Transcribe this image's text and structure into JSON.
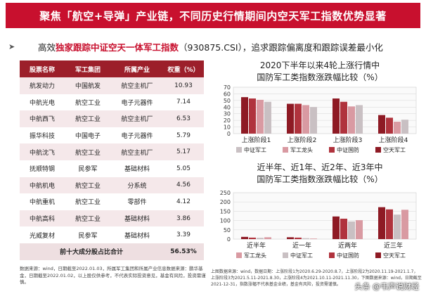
{
  "banner": {
    "title": "聚焦「航空+导弹」产业链，不同历史行情期间内空天军工指数优势显著"
  },
  "subtitle": {
    "arrow": "➤",
    "prefix": "高效",
    "highlight": "独家跟踪中证空天一体军工指数",
    "code": "（930875.CSI）",
    "suffix": "，追求跟踪偏离度和跟踪误差最小化"
  },
  "table": {
    "headers": [
      "股票名称",
      "军工集团",
      "所属产业",
      "权重（%）"
    ],
    "rows": [
      [
        "航发动力",
        "中国航发",
        "航空主机厂",
        "10.93"
      ],
      [
        "中航光电",
        "航空工业",
        "电子元器件",
        "7.14"
      ],
      [
        "中航西飞",
        "航空工业",
        "航空主机厂",
        "6.53"
      ],
      [
        "振华科技",
        "中国电子",
        "电子元器件",
        "5.79"
      ],
      [
        "中航沈飞",
        "航空工业",
        "航空主机厂",
        "5.17"
      ],
      [
        "抚顺特钢",
        "民参军",
        "基础材料",
        "5.05"
      ],
      [
        "中航机电",
        "航空工业",
        "分系统",
        "4.56"
      ],
      [
        "中航重机",
        "航空工业",
        "零部件",
        "4.12"
      ],
      [
        "中航高科",
        "航空工业",
        "基础材料",
        "3.86"
      ],
      [
        "光威复材",
        "民参军",
        "基础材料",
        "3.39"
      ]
    ],
    "total_label": "前十大成分股占比合计",
    "total_value": "56.53%"
  },
  "note_left": "数据来源：wind，日期截至2022.01.03，所属军工集团和所属产业信息数据来源：鹏华基金，日期截至2022.01.02，以上股仅供参考，不代表实际投资意见，基金有风险，投资需谨慎。",
  "note_right": "上图数据来源：wind，数据日期：上涨阶段1为2020.6.29-2020.8.7，上涨阶段2为2020.11.19-2021.1.7，上涨阶段3为2021.5.11-2021.8.30，上涨阶段4为2021.10.11-2021.11.30，下图数据来源：wind，日期截至2021-12-31，指数涨幅不代表基金业绩，基金有风险，投资需谨慎。",
  "watermark": "头条 @韦声说财经",
  "chart1": {
    "title_line1": "2020下半年以来4轮上涨行情中",
    "title_line2": "国防军工类指数涨跌幅比较（%）"
  },
  "chart2": {
    "title_line1": "近半年、近1年、近2年、近3年中",
    "title_line2": "国防军工类指数涨跌幅比较（%）"
  },
  "colors": {
    "banner": "#c8102e",
    "header": "#9c1f2a",
    "s1": "#8e1a24",
    "s2": "#b0333d",
    "s3": "#d99aa2",
    "s4": "#c9c0c3"
  },
  "chart_data": [
    {
      "type": "bar",
      "categories": [
        "上涨阶段1",
        "上涨阶段2",
        "上涨阶段3",
        "上涨阶段4"
      ],
      "series": [
        {
          "name": "空天军工",
          "values": [
            55,
            45,
            53,
            28
          ]
        },
        {
          "name": "中证国防",
          "values": [
            53,
            45,
            48,
            24
          ]
        },
        {
          "name": "军工龙头",
          "values": [
            51,
            43,
            41,
            18
          ]
        },
        {
          "name": "中证军工",
          "values": [
            48,
            40,
            43,
            21
          ]
        }
      ],
      "xlabel": "",
      "ylabel": "",
      "ylim": [
        0,
        70
      ],
      "yticks": [
        "0",
        "10",
        "20",
        "30",
        "40",
        "50",
        "60",
        "70"
      ],
      "legend_order": [
        "中证军工",
        "军工龙头",
        "中证国防",
        "空天军工"
      ],
      "grid": true,
      "legend": "bottom"
    },
    {
      "type": "bar",
      "categories": [
        "近半年",
        "近一年",
        "近两年",
        "近三年"
      ],
      "series": [
        {
          "name": "空天军工",
          "values": [
            12,
            10,
            122,
            172
          ]
        },
        {
          "name": "中证国防",
          "values": [
            8,
            8,
            110,
            160
          ]
        },
        {
          "name": "中证军工",
          "values": [
            7,
            5,
            95,
            132
          ]
        },
        {
          "name": "军工龙头",
          "values": [
            10,
            3,
            102,
            158
          ]
        }
      ],
      "xlabel": "",
      "ylabel": "",
      "ylim": [
        0,
        250
      ],
      "yticks": [
        "0",
        "50",
        "100",
        "150",
        "200",
        "250"
      ],
      "legend_order": [
        "军工龙头",
        "中证军工",
        "中证国防",
        "空天军工"
      ],
      "grid": true,
      "legend": "bottom"
    }
  ]
}
